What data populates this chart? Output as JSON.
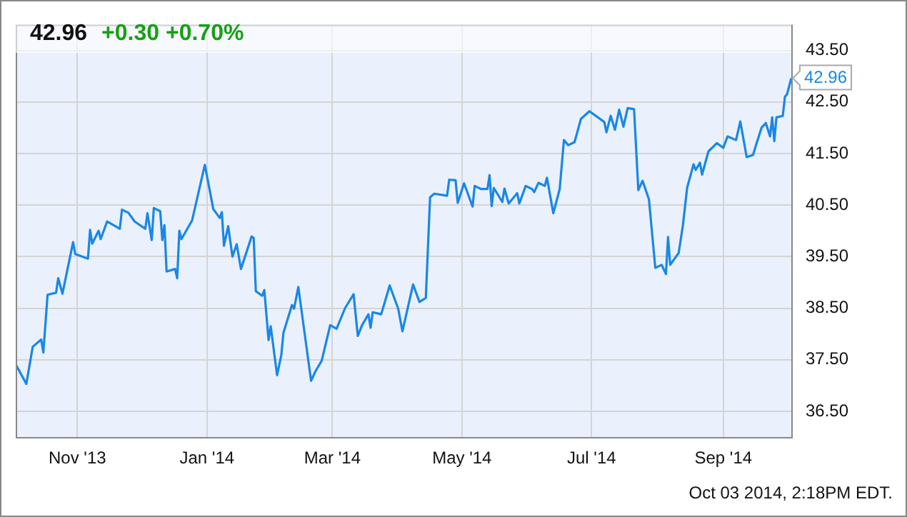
{
  "chart_data": {
    "type": "line",
    "title": "42.96",
    "subtitle": "+0.30 +0.70%",
    "annotations": [
      {
        "text": "42.96",
        "x": "2014-10-03",
        "y": 42.96
      },
      "Oct 03 2014, 2:18PM EDT."
    ],
    "xlim": [
      "2013-10-03",
      "2014-10-03"
    ],
    "xticks": [
      {
        "value": "2013-11-01",
        "label": "Nov '13"
      },
      {
        "value": "2014-01-01",
        "label": "Jan '14"
      },
      {
        "value": "2014-03-01",
        "label": "Mar '14"
      },
      {
        "value": "2014-05-01",
        "label": "May '14"
      },
      {
        "value": "2014-07-01",
        "label": "Jul '14"
      },
      {
        "value": "2014-09-01",
        "label": "Sep '14"
      }
    ],
    "ylim": [
      36,
      44
    ],
    "yticks": [
      {
        "value": 36.5,
        "label": "36.50"
      },
      {
        "value": 37.5,
        "label": "37.50"
      },
      {
        "value": 38.5,
        "label": "38.50"
      },
      {
        "value": 39.5,
        "label": "39.50"
      },
      {
        "value": 40.5,
        "label": "40.50"
      },
      {
        "value": 41.5,
        "label": "41.50"
      },
      {
        "value": 42.5,
        "label": "42.50"
      },
      {
        "value": 43.5,
        "label": "43.50"
      }
    ],
    "grid": true,
    "legend": false,
    "marker": "none",
    "line_style": "solid",
    "series": [
      {
        "color": "#1a87e6",
        "x": [
          "2013-10-03",
          "2013-10-08",
          "2013-10-11",
          "2013-10-15",
          "2013-10-16",
          "2013-10-18",
          "2013-10-22",
          "2013-10-23",
          "2013-10-25",
          "2013-10-30",
          "2013-10-31",
          "2013-11-06",
          "2013-11-07",
          "2013-11-08",
          "2013-11-11",
          "2013-11-12",
          "2013-11-15",
          "2013-11-21",
          "2013-11-22",
          "2013-11-25",
          "2013-11-28",
          "2013-12-03",
          "2013-12-04",
          "2013-12-06",
          "2013-12-07",
          "2013-12-10",
          "2013-12-11",
          "2013-12-12",
          "2013-12-13",
          "2013-12-17",
          "2013-12-18",
          "2013-12-19",
          "2013-12-20",
          "2013-12-25",
          "2013-12-31",
          "2014-01-04",
          "2014-01-07",
          "2014-01-08",
          "2014-01-09",
          "2014-01-11",
          "2014-01-13",
          "2014-01-15",
          "2014-01-17",
          "2014-01-22",
          "2014-01-23",
          "2014-01-24",
          "2014-01-27",
          "2014-01-28",
          "2014-01-30",
          "2014-01-31",
          "2014-02-03",
          "2014-02-05",
          "2014-02-06",
          "2014-02-10",
          "2014-02-11",
          "2014-02-13",
          "2014-02-19",
          "2014-02-21",
          "2014-02-24",
          "2014-02-28",
          "2014-03-03",
          "2014-03-07",
          "2014-03-11",
          "2014-03-13",
          "2014-03-15",
          "2014-03-18",
          "2014-03-19",
          "2014-03-20",
          "2014-03-24",
          "2014-03-28",
          "2014-04-01",
          "2014-04-03",
          "2014-04-08",
          "2014-04-11",
          "2014-04-14",
          "2014-04-16",
          "2014-04-18",
          "2014-04-24",
          "2014-04-25",
          "2014-04-28",
          "2014-04-29",
          "2014-05-02",
          "2014-05-06",
          "2014-05-07",
          "2014-05-10",
          "2014-05-13",
          "2014-05-14",
          "2014-05-15",
          "2014-05-16",
          "2014-05-20",
          "2014-05-21",
          "2014-05-23",
          "2014-05-27",
          "2014-05-28",
          "2014-05-31",
          "2014-06-03",
          "2014-06-04",
          "2014-06-06",
          "2014-06-09",
          "2014-06-10",
          "2014-06-13",
          "2014-06-16",
          "2014-06-18",
          "2014-06-20",
          "2014-06-23",
          "2014-06-26",
          "2014-06-30",
          "2014-07-07",
          "2014-07-08",
          "2014-07-10",
          "2014-07-12",
          "2014-07-14",
          "2014-07-16",
          "2014-07-18",
          "2014-07-21",
          "2014-07-23",
          "2014-07-25",
          "2014-07-28",
          "2014-07-31",
          "2014-08-03",
          "2014-08-05",
          "2014-08-06",
          "2014-08-07",
          "2014-08-11",
          "2014-08-13",
          "2014-08-15",
          "2014-08-18",
          "2014-08-19",
          "2014-08-21",
          "2014-08-22",
          "2014-08-25",
          "2014-08-29",
          "2014-09-01",
          "2014-09-03",
          "2014-09-07",
          "2014-09-09",
          "2014-09-12",
          "2014-09-15",
          "2014-09-16",
          "2014-09-19",
          "2014-09-21",
          "2014-09-23",
          "2014-09-24",
          "2014-09-25",
          "2014-09-26",
          "2014-09-29",
          "2014-09-30",
          "2014-10-01",
          "2014-10-03"
        ],
        "values": [
          37.41,
          37.03,
          37.75,
          37.89,
          37.64,
          38.76,
          38.8,
          39.08,
          38.78,
          39.78,
          39.55,
          39.46,
          40.02,
          39.75,
          40.0,
          39.84,
          40.18,
          40.04,
          40.41,
          40.35,
          40.18,
          40.04,
          40.34,
          39.82,
          40.44,
          40.38,
          39.82,
          40.11,
          39.21,
          39.26,
          39.08,
          40.0,
          39.84,
          40.2,
          41.28,
          40.42,
          40.25,
          40.36,
          39.71,
          40.09,
          39.5,
          39.74,
          39.26,
          39.89,
          39.86,
          38.83,
          38.74,
          38.85,
          37.88,
          38.15,
          37.2,
          37.59,
          38.02,
          38.56,
          38.49,
          38.91,
          37.09,
          37.27,
          37.48,
          38.17,
          38.1,
          38.5,
          38.77,
          37.96,
          38.17,
          38.38,
          38.12,
          38.42,
          38.38,
          38.94,
          38.49,
          38.05,
          38.96,
          38.62,
          38.7,
          40.65,
          40.72,
          40.68,
          40.99,
          40.98,
          40.54,
          40.92,
          40.47,
          40.87,
          40.81,
          40.81,
          41.08,
          40.48,
          40.83,
          40.56,
          40.82,
          40.53,
          40.73,
          40.53,
          40.87,
          40.81,
          40.75,
          40.93,
          40.87,
          41.03,
          40.34,
          40.81,
          41.76,
          41.66,
          41.72,
          42.17,
          42.32,
          42.11,
          41.91,
          42.23,
          41.96,
          42.35,
          42.02,
          42.38,
          42.36,
          40.79,
          40.97,
          40.61,
          39.28,
          39.34,
          39.16,
          39.88,
          39.34,
          39.57,
          40.11,
          40.84,
          41.29,
          41.18,
          41.32,
          41.09,
          41.54,
          41.7,
          41.61,
          41.83,
          41.76,
          42.12,
          41.43,
          41.47,
          41.61,
          42.0,
          42.09,
          41.83,
          42.2,
          41.74,
          42.2,
          42.23,
          42.6,
          42.65,
          42.96
        ]
      }
    ]
  }
}
